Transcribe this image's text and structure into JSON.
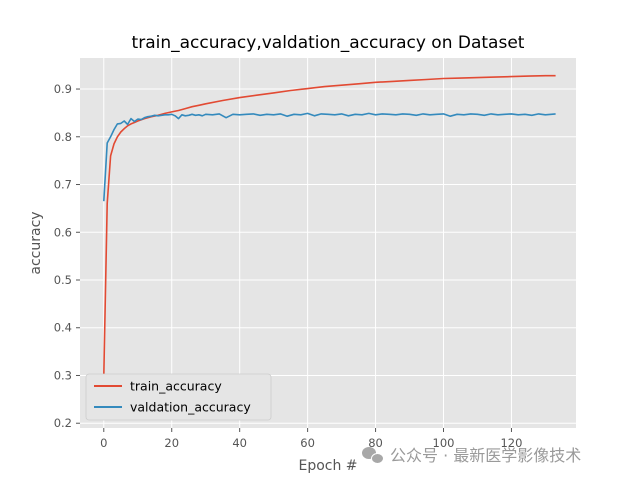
{
  "chart_data": {
    "type": "line",
    "title": "train_accuracy,valdation_accuracy on Dataset",
    "xlabel": "Epoch #",
    "ylabel": "accuracy",
    "xlim": [
      -7,
      139
    ],
    "ylim": [
      0.19,
      0.965
    ],
    "xticks": [
      0,
      20,
      40,
      60,
      80,
      100,
      120
    ],
    "yticks": [
      0.2,
      0.3,
      0.4,
      0.5,
      0.6,
      0.7,
      0.8,
      0.9
    ],
    "grid": true,
    "legend_position": "lower-left",
    "series": [
      {
        "name": "train_accuracy",
        "color": "#e24a33",
        "x": [
          0,
          1,
          2,
          3,
          4,
          5,
          6,
          7,
          8,
          9,
          10,
          12,
          14,
          16,
          18,
          20,
          22,
          24,
          26,
          28,
          30,
          35,
          40,
          45,
          50,
          55,
          60,
          65,
          70,
          75,
          80,
          85,
          90,
          95,
          100,
          105,
          110,
          115,
          120,
          125,
          130,
          133
        ],
        "y": [
          0.3,
          0.66,
          0.76,
          0.785,
          0.8,
          0.81,
          0.817,
          0.823,
          0.827,
          0.83,
          0.833,
          0.838,
          0.842,
          0.845,
          0.849,
          0.852,
          0.855,
          0.859,
          0.863,
          0.866,
          0.869,
          0.876,
          0.882,
          0.887,
          0.892,
          0.897,
          0.901,
          0.905,
          0.908,
          0.911,
          0.914,
          0.916,
          0.918,
          0.92,
          0.922,
          0.923,
          0.924,
          0.925,
          0.926,
          0.927,
          0.928,
          0.928
        ]
      },
      {
        "name": "valdation_accuracy",
        "color": "#348abd",
        "x": [
          0,
          1,
          2,
          3,
          4,
          5,
          6,
          7,
          8,
          9,
          10,
          11,
          12,
          13,
          14,
          15,
          16,
          17,
          18,
          19,
          20,
          21,
          22,
          23,
          24,
          25,
          26,
          27,
          28,
          29,
          30,
          32,
          34,
          36,
          38,
          40,
          42,
          44,
          46,
          48,
          50,
          52,
          54,
          56,
          58,
          60,
          62,
          64,
          66,
          68,
          70,
          72,
          74,
          76,
          78,
          80,
          82,
          84,
          86,
          88,
          90,
          92,
          94,
          96,
          98,
          100,
          102,
          104,
          106,
          108,
          110,
          112,
          114,
          116,
          118,
          120,
          122,
          124,
          126,
          128,
          130,
          133
        ],
        "y": [
          0.665,
          0.787,
          0.8,
          0.815,
          0.827,
          0.828,
          0.833,
          0.826,
          0.838,
          0.832,
          0.837,
          0.836,
          0.84,
          0.842,
          0.843,
          0.845,
          0.844,
          0.845,
          0.846,
          0.846,
          0.847,
          0.844,
          0.838,
          0.846,
          0.844,
          0.845,
          0.847,
          0.845,
          0.846,
          0.844,
          0.847,
          0.846,
          0.848,
          0.84,
          0.847,
          0.846,
          0.847,
          0.848,
          0.845,
          0.847,
          0.846,
          0.848,
          0.843,
          0.847,
          0.846,
          0.849,
          0.844,
          0.848,
          0.847,
          0.846,
          0.848,
          0.844,
          0.847,
          0.846,
          0.849,
          0.846,
          0.848,
          0.847,
          0.846,
          0.848,
          0.847,
          0.845,
          0.848,
          0.846,
          0.847,
          0.848,
          0.843,
          0.847,
          0.846,
          0.848,
          0.847,
          0.845,
          0.848,
          0.846,
          0.847,
          0.848,
          0.846,
          0.847,
          0.845,
          0.848,
          0.846,
          0.848
        ]
      }
    ]
  },
  "watermark": {
    "icon": "wechat-icon",
    "text": "公众号 · 最新医学影像技术"
  }
}
